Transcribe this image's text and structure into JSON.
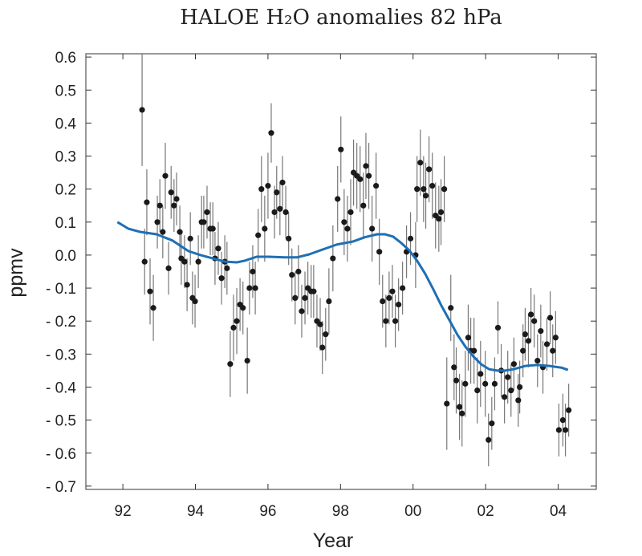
{
  "chart_data": {
    "type": "scatter",
    "title": "HALOE H₂O anomalies  82 hPa",
    "xlabel": "Year",
    "ylabel": "ppmv",
    "color": "#1a1a1a",
    "xlim": [
      1990.98,
      2005.05
    ],
    "ylim": [
      -0.71,
      0.61
    ],
    "xticks": [
      {
        "value": 1992,
        "label": "92"
      },
      {
        "value": 1994,
        "label": "94"
      },
      {
        "value": 1996,
        "label": "96"
      },
      {
        "value": 1998,
        "label": "98"
      },
      {
        "value": 2000,
        "label": "00"
      },
      {
        "value": 2002,
        "label": "02"
      },
      {
        "value": 2004,
        "label": "04"
      }
    ],
    "yticks": [
      0.6,
      0.5,
      0.4,
      0.3,
      0.2,
      0.1,
      {
        "value": 0,
        "label": "0.0"
      },
      {
        "value": -0.1,
        "label": "- 0.1"
      },
      {
        "value": -0.2,
        "label": "- 0.2"
      },
      {
        "value": -0.3,
        "label": "- 0.3"
      },
      {
        "value": -0.4,
        "label": "- 0.4"
      },
      {
        "value": -0.5,
        "label": "- 0.5"
      },
      {
        "value": -0.6,
        "label": "- 0.6"
      },
      {
        "value": -0.7,
        "label": "- 0.7"
      }
    ],
    "x": [
      1992.53,
      1992.6,
      1992.66,
      1992.75,
      1992.84,
      1992.95,
      1993.02,
      1993.1,
      1993.17,
      1993.26,
      1993.33,
      1993.41,
      1993.48,
      1993.57,
      1993.61,
      1993.7,
      1993.77,
      1993.86,
      1993.92,
      1993.99,
      1994.08,
      1994.17,
      1994.23,
      1994.32,
      1994.41,
      1994.48,
      1994.54,
      1994.63,
      1994.72,
      1994.81,
      1994.87,
      1994.96,
      1995.05,
      1995.14,
      1995.23,
      1995.31,
      1995.43,
      1995.49,
      1995.58,
      1995.65,
      1995.73,
      1995.82,
      1995.91,
      1996.0,
      1996.09,
      1996.18,
      1996.24,
      1996.33,
      1996.4,
      1996.49,
      1996.57,
      1996.66,
      1996.75,
      1996.84,
      1996.93,
      1997.02,
      1997.1,
      1997.19,
      1997.26,
      1997.35,
      1997.44,
      1997.5,
      1997.59,
      1997.68,
      1997.79,
      1997.92,
      1998.01,
      1998.1,
      1998.19,
      1998.28,
      1998.36,
      1998.45,
      1998.54,
      1998.63,
      1998.7,
      1998.78,
      1998.87,
      1998.98,
      1999.07,
      1999.16,
      1999.25,
      1999.34,
      1999.43,
      1999.51,
      1999.6,
      1999.71,
      1999.82,
      1999.93,
      2000.07,
      2000.11,
      2000.2,
      2000.29,
      2000.35,
      2000.44,
      2000.53,
      2000.62,
      2000.71,
      2000.77,
      2000.86,
      2000.93,
      2001.04,
      2001.13,
      2001.19,
      2001.28,
      2001.35,
      2001.44,
      2001.52,
      2001.59,
      2001.68,
      2001.77,
      2001.86,
      2001.99,
      2002.08,
      2002.17,
      2002.25,
      2002.34,
      2002.43,
      2002.52,
      2002.61,
      2002.7,
      2002.78,
      2002.9,
      2002.94,
      2003.03,
      2003.09,
      2003.18,
      2003.25,
      2003.34,
      2003.43,
      2003.52,
      2003.58,
      2003.69,
      2003.78,
      2003.85,
      2003.93,
      2004.02,
      2004.13,
      2004.2,
      2004.29
    ],
    "values": [
      0.44,
      -0.02,
      0.16,
      -0.11,
      -0.16,
      0.1,
      0.15,
      0.07,
      0.24,
      -0.04,
      0.19,
      0.15,
      0.17,
      0.07,
      -0.01,
      -0.02,
      -0.09,
      0.05,
      -0.13,
      -0.14,
      -0.02,
      0.1,
      0.1,
      0.13,
      0.08,
      0.08,
      -0.01,
      0.02,
      -0.07,
      -0.02,
      -0.04,
      -0.33,
      -0.22,
      -0.2,
      -0.15,
      -0.16,
      -0.32,
      -0.1,
      -0.05,
      -0.1,
      0.06,
      0.2,
      0.08,
      0.21,
      0.37,
      0.13,
      0.19,
      0.14,
      0.22,
      0.13,
      0.05,
      -0.06,
      -0.13,
      -0.05,
      -0.17,
      -0.13,
      -0.1,
      -0.11,
      -0.11,
      -0.2,
      -0.21,
      -0.28,
      -0.24,
      -0.14,
      -0.01,
      0.17,
      0.32,
      0.1,
      0.08,
      0.13,
      0.25,
      0.24,
      0.23,
      0.15,
      0.27,
      0.24,
      0.08,
      0.21,
      0.01,
      -0.14,
      -0.2,
      -0.13,
      -0.11,
      -0.2,
      -0.15,
      -0.1,
      0.01,
      0.05,
      0.0,
      0.2,
      0.28,
      0.2,
      0.18,
      0.26,
      0.21,
      0.12,
      0.11,
      0.13,
      0.2,
      -0.45,
      -0.16,
      -0.34,
      -0.38,
      -0.46,
      -0.48,
      -0.39,
      -0.25,
      -0.29,
      -0.29,
      -0.41,
      -0.36,
      -0.39,
      -0.56,
      -0.51,
      -0.39,
      -0.22,
      -0.35,
      -0.43,
      -0.37,
      -0.41,
      -0.33,
      -0.44,
      -0.4,
      -0.29,
      -0.24,
      -0.26,
      -0.18,
      -0.2,
      -0.32,
      -0.23,
      -0.34,
      -0.27,
      -0.19,
      -0.29,
      -0.25,
      -0.53,
      -0.5,
      -0.53,
      -0.47
    ],
    "errors": [
      0.17,
      0.1,
      0.1,
      0.1,
      0.1,
      0.08,
      0.08,
      0.08,
      0.1,
      0.08,
      0.08,
      0.08,
      0.08,
      0.08,
      0.08,
      0.08,
      0.08,
      0.08,
      0.08,
      0.08,
      0.08,
      0.08,
      0.08,
      0.08,
      0.08,
      0.08,
      0.08,
      0.08,
      0.08,
      0.08,
      0.08,
      0.1,
      0.1,
      0.1,
      0.08,
      0.08,
      0.1,
      0.08,
      0.08,
      0.08,
      0.08,
      0.1,
      0.1,
      0.1,
      0.09,
      0.08,
      0.08,
      0.08,
      0.08,
      0.08,
      0.08,
      0.08,
      0.08,
      0.08,
      0.08,
      0.08,
      0.08,
      0.08,
      0.08,
      0.08,
      0.08,
      0.08,
      0.08,
      0.1,
      0.1,
      0.1,
      0.1,
      0.1,
      0.1,
      0.1,
      0.1,
      0.1,
      0.1,
      0.1,
      0.1,
      0.1,
      0.1,
      0.1,
      0.1,
      0.08,
      0.08,
      0.08,
      0.08,
      0.08,
      0.08,
      0.08,
      0.08,
      0.08,
      0.1,
      0.1,
      0.1,
      0.1,
      0.1,
      0.1,
      0.1,
      0.1,
      0.1,
      0.1,
      0.1,
      0.14,
      0.1,
      0.1,
      0.1,
      0.1,
      0.1,
      0.1,
      0.1,
      0.1,
      0.1,
      0.1,
      0.1,
      0.1,
      0.08,
      0.08,
      0.08,
      0.08,
      0.08,
      0.08,
      0.08,
      0.08,
      0.08,
      0.08,
      0.08,
      0.08,
      0.08,
      0.08,
      0.08,
      0.08,
      0.08,
      0.08,
      0.08,
      0.08,
      0.08,
      0.08,
      0.08,
      0.08,
      0.08,
      0.08,
      0.08
    ],
    "fit": {
      "color": "#1f6fb4",
      "x": [
        1991.85,
        1992.15,
        1992.49,
        1992.93,
        1993.37,
        1993.81,
        1994.14,
        1994.48,
        1994.81,
        1995.14,
        1995.36,
        1995.69,
        1996.02,
        1996.46,
        1996.8,
        1997.13,
        1997.46,
        1997.9,
        1998.34,
        1998.67,
        1999.01,
        1999.23,
        1999.45,
        1999.67,
        1999.89,
        2000.11,
        2000.33,
        2000.55,
        2000.77,
        2000.99,
        2001.22,
        2001.44,
        2001.66,
        2001.88,
        2002.1,
        2002.32,
        2002.54,
        2002.76,
        2003.09,
        2003.43,
        2003.76,
        2004.09,
        2004.27
      ],
      "values": [
        0.1,
        0.08,
        0.07,
        0.063,
        0.044,
        0.012,
        0.0,
        -0.01,
        -0.02,
        -0.022,
        -0.017,
        -0.005,
        -0.005,
        -0.007,
        -0.007,
        0.002,
        0.015,
        0.032,
        0.041,
        0.054,
        0.063,
        0.063,
        0.056,
        0.037,
        0.015,
        -0.017,
        -0.056,
        -0.102,
        -0.151,
        -0.195,
        -0.241,
        -0.277,
        -0.307,
        -0.331,
        -0.346,
        -0.35,
        -0.35,
        -0.346,
        -0.336,
        -0.333,
        -0.336,
        -0.341,
        -0.348
      ]
    }
  }
}
